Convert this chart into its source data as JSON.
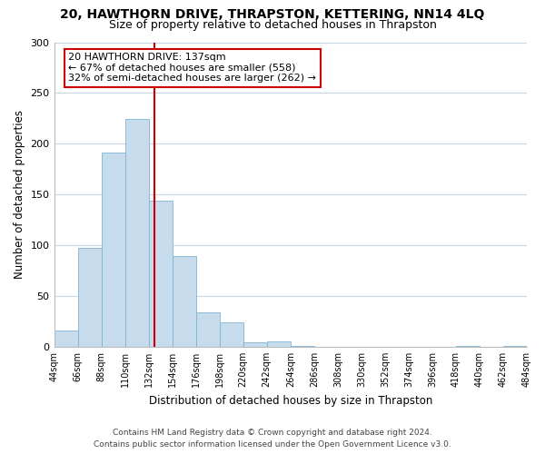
{
  "title": "20, HAWTHORN DRIVE, THRAPSTON, KETTERING, NN14 4LQ",
  "subtitle": "Size of property relative to detached houses in Thrapston",
  "bar_values": [
    16,
    97,
    191,
    224,
    144,
    89,
    34,
    24,
    4,
    5,
    1,
    0,
    0,
    0,
    0,
    0,
    0,
    1,
    0,
    1
  ],
  "bin_edges": [
    44,
    66,
    88,
    110,
    132,
    154,
    176,
    198,
    220,
    242,
    264,
    286,
    308,
    330,
    352,
    374,
    396,
    418,
    440,
    462,
    484
  ],
  "tick_labels": [
    "44sqm",
    "66sqm",
    "88sqm",
    "110sqm",
    "132sqm",
    "154sqm",
    "176sqm",
    "198sqm",
    "220sqm",
    "242sqm",
    "264sqm",
    "286sqm",
    "308sqm",
    "330sqm",
    "352sqm",
    "374sqm",
    "396sqm",
    "418sqm",
    "440sqm",
    "462sqm",
    "484sqm"
  ],
  "xlabel": "Distribution of detached houses by size in Thrapston",
  "ylabel": "Number of detached properties",
  "ylim": [
    0,
    300
  ],
  "yticks": [
    0,
    50,
    100,
    150,
    200,
    250,
    300
  ],
  "bar_color": "#c6dcec",
  "bar_edge_color": "#7fb3d3",
  "vline_x": 137,
  "vline_color": "#cc0000",
  "annotation_title": "20 HAWTHORN DRIVE: 137sqm",
  "annotation_line1": "← 67% of detached houses are smaller (558)",
  "annotation_line2": "32% of semi-detached houses are larger (262) →",
  "annotation_box_color": "#cc0000",
  "footer_line1": "Contains HM Land Registry data © Crown copyright and database right 2024.",
  "footer_line2": "Contains public sector information licensed under the Open Government Licence v3.0.",
  "bg_color": "#ffffff",
  "grid_color": "#c8d4e8"
}
